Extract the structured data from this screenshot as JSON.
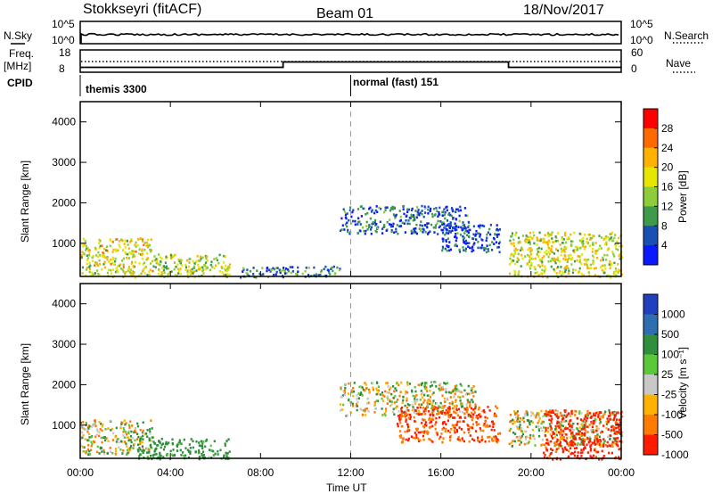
{
  "header": {
    "station": "Stokkseyri (fitACF)",
    "beam": "Beam 01",
    "date": "18/Nov/2017"
  },
  "top_panels": {
    "nsky_label": "N.Sky",
    "nsky_ticks": [
      "10^5",
      "10^0"
    ],
    "nsky_right_ticks": [
      "10^5",
      "10^0"
    ],
    "nsearch_label": "N.Search",
    "freq_label_line1": "Freq.",
    "freq_label_line2": "[MHz]",
    "freq_ticks": [
      "18",
      "8"
    ],
    "nave_ticks": [
      "60",
      "0"
    ],
    "nave_label": "Nave",
    "cpid_label": "CPID",
    "cpid_left": "themis 3300",
    "cpid_right": "normal (fast) 151"
  },
  "axes": {
    "ylabel": "Slant Range [km]",
    "xlabel": "Time UT",
    "x_ticks": [
      "00:00",
      "04:00",
      "08:00",
      "12:00",
      "16:00",
      "20:00",
      "00:00"
    ],
    "y_ticks": [
      "4000",
      "3000",
      "2000",
      "1000"
    ],
    "y_tick_values": [
      4000,
      3000,
      2000,
      1000
    ],
    "x_range_hours": [
      0,
      24
    ],
    "y_range_km": [
      180,
      4500
    ]
  },
  "power_colorbar": {
    "label": "Power [dB]",
    "ticks": [
      "28",
      "24",
      "20",
      "16",
      "12",
      "8",
      "4"
    ],
    "colors": [
      "#ff0000",
      "#ff6a00",
      "#ffb300",
      "#e6e600",
      "#8fcc3a",
      "#3d9b4b",
      "#1a4fb4",
      "#0a1aff"
    ]
  },
  "velocity_colorbar": {
    "label": "Velocity [m s⁻¹]",
    "ticks": [
      "1000",
      "500",
      "100",
      "25",
      "-25",
      "-100",
      "-500",
      "-1000"
    ],
    "colors": [
      "#2040c0",
      "#2d6db0",
      "#2f8f3c",
      "#5bc83a",
      "#c8c8c8",
      "#ffb300",
      "#ff7a00",
      "#ff1a00"
    ]
  },
  "chart_data": {
    "type": "heatmap",
    "description_panels": [
      "Power",
      "Velocity"
    ],
    "x_unit": "hours UT",
    "y_unit": "slant range km",
    "nsky_level": 0.75,
    "freq_segments": [
      {
        "t0": 0,
        "t1": 9,
        "mhz": 10.2
      },
      {
        "t0": 9,
        "t1": 19,
        "mhz": 12.6
      },
      {
        "t0": 19,
        "t1": 24,
        "mhz": 10.2
      }
    ],
    "nave_level_fraction": 0.55,
    "cpid_change_hour": 12.0,
    "power_regions": [
      {
        "t0": 0.0,
        "t1": 3.2,
        "r0": 180,
        "r1": 1150,
        "power": 18
      },
      {
        "t0": 3.2,
        "t1": 6.6,
        "r0": 180,
        "r1": 750,
        "power": 15
      },
      {
        "t0": 7.0,
        "t1": 11.5,
        "r0": 180,
        "r1": 450,
        "power": 8
      },
      {
        "t0": 11.5,
        "t1": 17.2,
        "r0": 1250,
        "r1": 1950,
        "power": 6
      },
      {
        "t0": 16.0,
        "t1": 18.6,
        "r0": 800,
        "r1": 1500,
        "power": 5
      },
      {
        "t0": 19.0,
        "t1": 24.0,
        "r0": 180,
        "r1": 1300,
        "power": 17
      }
    ],
    "velocity_regions": [
      {
        "t0": 0.0,
        "t1": 3.2,
        "r0": 300,
        "r1": 1150,
        "v": 0
      },
      {
        "t0": 2.5,
        "t1": 6.6,
        "r0": 180,
        "r1": 700,
        "v": 150
      },
      {
        "t0": 11.5,
        "t1": 17.5,
        "r0": 1250,
        "r1": 2100,
        "v": 0
      },
      {
        "t0": 14.0,
        "t1": 18.6,
        "r0": 600,
        "r1": 1500,
        "v": -300
      },
      {
        "t0": 19.0,
        "t1": 24.0,
        "r0": 500,
        "r1": 1400,
        "v": 0
      },
      {
        "t0": 20.5,
        "t1": 24.0,
        "r0": 180,
        "r1": 1400,
        "v": -400
      }
    ]
  }
}
